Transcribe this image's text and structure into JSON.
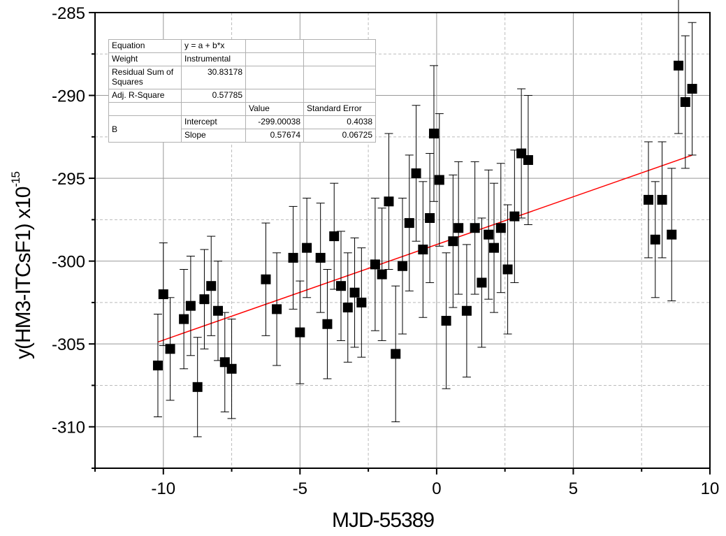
{
  "chart_data": {
    "type": "scatter",
    "xlabel": "MJD-55389",
    "ylabel_main": "y(HM3-ITCsF1) x10",
    "ylabel_exp": "-15",
    "xlim": [
      -12.5,
      10
    ],
    "ylim": [
      -312.5,
      -285
    ],
    "xticks": [
      -10,
      -5,
      0,
      5,
      10
    ],
    "yticks": [
      -285,
      -290,
      -295,
      -300,
      -305,
      -310
    ],
    "grid": true,
    "series": [
      {
        "marker": "square",
        "color": "#000000",
        "points": [
          {
            "x": -10.2,
            "y": -306.3,
            "err": 3.1
          },
          {
            "x": -10.0,
            "y": -302.0,
            "err": 3.1
          },
          {
            "x": -9.75,
            "y": -305.3,
            "err": 3.1
          },
          {
            "x": -9.25,
            "y": -303.5,
            "err": 3.0
          },
          {
            "x": -9.0,
            "y": -302.7,
            "err": 3.0
          },
          {
            "x": -8.75,
            "y": -307.6,
            "err": 3.0
          },
          {
            "x": -8.5,
            "y": -302.3,
            "err": 3.0
          },
          {
            "x": -8.25,
            "y": -301.5,
            "err": 3.0
          },
          {
            "x": -8.0,
            "y": -303.0,
            "err": 3.0
          },
          {
            "x": -7.75,
            "y": -306.1,
            "err": 3.0
          },
          {
            "x": -7.5,
            "y": -306.5,
            "err": 3.0
          },
          {
            "x": -6.25,
            "y": -301.1,
            "err": 3.4
          },
          {
            "x": -5.85,
            "y": -302.9,
            "err": 3.4
          },
          {
            "x": -5.25,
            "y": -299.8,
            "err": 3.1
          },
          {
            "x": -5.0,
            "y": -304.3,
            "err": 3.1
          },
          {
            "x": -4.75,
            "y": -299.2,
            "err": 3.0
          },
          {
            "x": -4.25,
            "y": -299.8,
            "err": 3.3
          },
          {
            "x": -4.0,
            "y": -303.8,
            "err": 3.3
          },
          {
            "x": -3.75,
            "y": -298.5,
            "err": 3.2
          },
          {
            "x": -3.5,
            "y": -301.5,
            "err": 3.3
          },
          {
            "x": -3.25,
            "y": -302.8,
            "err": 3.3
          },
          {
            "x": -3.0,
            "y": -301.9,
            "err": 3.3
          },
          {
            "x": -2.75,
            "y": -302.5,
            "err": 3.3
          },
          {
            "x": -2.25,
            "y": -300.2,
            "err": 4.0
          },
          {
            "x": -2.0,
            "y": -300.8,
            "err": 4.0
          },
          {
            "x": -1.75,
            "y": -296.4,
            "err": 4.1
          },
          {
            "x": -1.5,
            "y": -305.6,
            "err": 4.1
          },
          {
            "x": -1.25,
            "y": -300.3,
            "err": 4.1
          },
          {
            "x": -1.0,
            "y": -297.7,
            "err": 4.1
          },
          {
            "x": -0.75,
            "y": -294.7,
            "err": 4.1
          },
          {
            "x": -0.5,
            "y": -299.3,
            "err": 4.1
          },
          {
            "x": -0.25,
            "y": -297.4,
            "err": 3.9
          },
          {
            "x": -0.1,
            "y": -292.3,
            "err": 4.1
          },
          {
            "x": 0.1,
            "y": -295.1,
            "err": 4.0
          },
          {
            "x": 0.35,
            "y": -303.6,
            "err": 4.1
          },
          {
            "x": 0.6,
            "y": -298.8,
            "err": 4.0
          },
          {
            "x": 0.8,
            "y": -298.0,
            "err": 4.0
          },
          {
            "x": 1.1,
            "y": -303.0,
            "err": 4.0
          },
          {
            "x": 1.4,
            "y": -298.0,
            "err": 4.0
          },
          {
            "x": 1.65,
            "y": -301.3,
            "err": 3.9
          },
          {
            "x": 1.9,
            "y": -298.4,
            "err": 3.9
          },
          {
            "x": 2.1,
            "y": -299.2,
            "err": 3.9
          },
          {
            "x": 2.35,
            "y": -298.0,
            "err": 3.9
          },
          {
            "x": 2.6,
            "y": -300.5,
            "err": 3.9
          },
          {
            "x": 2.85,
            "y": -297.3,
            "err": 4.0
          },
          {
            "x": 3.1,
            "y": -293.5,
            "err": 3.9
          },
          {
            "x": 3.35,
            "y": -293.9,
            "err": 3.9
          },
          {
            "x": 7.75,
            "y": -296.3,
            "err": 3.5
          },
          {
            "x": 8.0,
            "y": -298.7,
            "err": 3.5
          },
          {
            "x": 8.25,
            "y": -296.3,
            "err": 3.5
          },
          {
            "x": 8.6,
            "y": -298.4,
            "err": 4.0
          },
          {
            "x": 8.85,
            "y": -288.2,
            "err": 4.1
          },
          {
            "x": 9.1,
            "y": -290.4,
            "err": 4.0
          },
          {
            "x": 9.35,
            "y": -289.6,
            "err": 4.0
          }
        ]
      }
    ],
    "fit_line": {
      "color": "#ff0000",
      "intercept": -299.00038,
      "slope": 0.57674,
      "x_range": [
        -10.2,
        9.35
      ]
    }
  },
  "stats_table": {
    "equation_label": "Equation",
    "equation_value": "y = a + b*x",
    "weight_label": "Weight",
    "weight_value": "Instrumental",
    "rss_label": "Residual Sum of Squares",
    "rss_value": "30.83178",
    "adjr_label": "Adj. R-Square",
    "adjr_value": "0.57785",
    "value_header": "Value",
    "stderr_header": "Standard Error",
    "group_label": "B",
    "intercept_label": "Intercept",
    "intercept_value": "-299.00038",
    "intercept_err": "0.4038",
    "slope_label": "Slope",
    "slope_value": "0.57674",
    "slope_err": "0.06725"
  }
}
